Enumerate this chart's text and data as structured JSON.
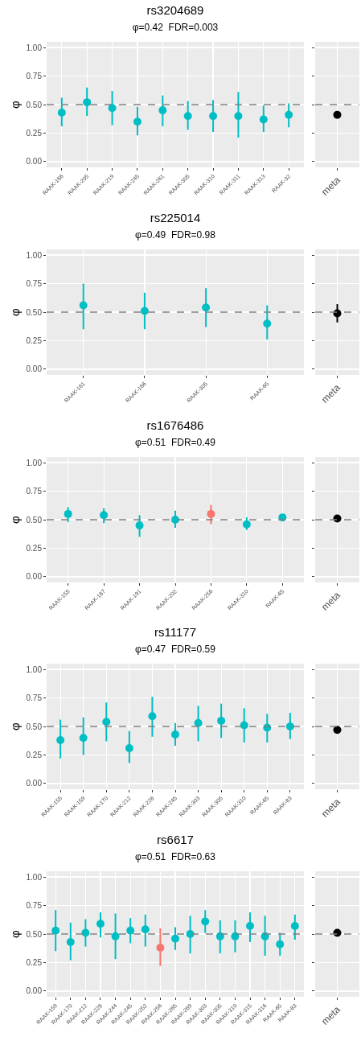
{
  "chart_data": [
    {
      "type": "scatter",
      "title": "rs3204689",
      "subtitle": "φ=0.42  FDR=0.003",
      "ylabel": "φ",
      "categories": [
        "RAAK-166",
        "RAAK-205",
        "RAAK-219",
        "RAAK-245",
        "RAAK-261",
        "RAAK-305",
        "RAAK-310",
        "RAAK-311",
        "RAAK-313",
        "RAAK-32"
      ],
      "values": [
        0.43,
        0.52,
        0.47,
        0.35,
        0.45,
        0.4,
        0.4,
        0.4,
        0.37,
        0.41
      ],
      "errors": [
        [
          0.31,
          0.56
        ],
        [
          0.4,
          0.65
        ],
        [
          0.32,
          0.62
        ],
        [
          0.23,
          0.48
        ],
        [
          0.31,
          0.58
        ],
        [
          0.28,
          0.53
        ],
        [
          0.26,
          0.54
        ],
        [
          0.21,
          0.61
        ],
        [
          0.26,
          0.49
        ],
        [
          0.3,
          0.51
        ]
      ],
      "colors": [
        "#00bfc4",
        "#00bfc4",
        "#00bfc4",
        "#00bfc4",
        "#00bfc4",
        "#00bfc4",
        "#00bfc4",
        "#00bfc4",
        "#00bfc4",
        "#00bfc4"
      ],
      "ylim": [
        -0.05,
        1.05
      ],
      "yticks": [
        {
          "value": 0,
          "label": "0.00"
        },
        {
          "value": 0.25,
          "label": "0.25"
        },
        {
          "value": 0.5,
          "label": "0.50"
        },
        {
          "value": 0.75,
          "label": "0.75"
        },
        {
          "value": 1,
          "label": "1.00"
        }
      ],
      "ref_lines": [
        {
          "axis": "y",
          "value": 0.5,
          "color": "#7f7f7f",
          "line_style": "dashed"
        }
      ],
      "grid": true,
      "marker": "circle"
    },
    {
      "type": "scatter",
      "categories": [
        "meta"
      ],
      "values": [
        0.41
      ],
      "errors": [
        [
          0.38,
          0.44
        ]
      ],
      "colors": [
        "#000000"
      ],
      "ylim": [
        -0.05,
        1.05
      ],
      "yticks": [
        {
          "value": 0,
          "label": null
        },
        {
          "value": 0.25,
          "label": null
        },
        {
          "value": 0.5,
          "label": null
        },
        {
          "value": 0.75,
          "label": null
        },
        {
          "value": 1,
          "label": null
        }
      ],
      "tick_labels": "x",
      "ref_lines": [
        {
          "axis": "y",
          "value": 0.5,
          "color": "#7f7f7f",
          "line_style": "dashed"
        }
      ],
      "grid": true,
      "marker": "circle"
    },
    {
      "type": "scatter",
      "title": "rs225014",
      "subtitle": "φ=0.49  FDR=0.98",
      "ylabel": "φ",
      "categories": [
        "RAAK-161",
        "RAAK-166",
        "RAAK-305",
        "RAAK-65"
      ],
      "values": [
        0.56,
        0.51,
        0.54,
        0.4
      ],
      "errors": [
        [
          0.35,
          0.75
        ],
        [
          0.35,
          0.67
        ],
        [
          0.37,
          0.71
        ],
        [
          0.26,
          0.56
        ]
      ],
      "colors": [
        "#00bfc4",
        "#00bfc4",
        "#00bfc4",
        "#00bfc4"
      ],
      "ylim": [
        -0.05,
        1.05
      ],
      "yticks": [
        {
          "value": 0,
          "label": "0.00"
        },
        {
          "value": 0.25,
          "label": "0.25"
        },
        {
          "value": 0.5,
          "label": "0.50"
        },
        {
          "value": 0.75,
          "label": "0.75"
        },
        {
          "value": 1,
          "label": "1.00"
        }
      ],
      "ref_lines": [
        {
          "axis": "y",
          "value": 0.5,
          "color": "#7f7f7f",
          "line_style": "dashed"
        }
      ],
      "grid": true,
      "marker": "circle"
    },
    {
      "type": "scatter",
      "categories": [
        "meta"
      ],
      "values": [
        0.49
      ],
      "errors": [
        [
          0.41,
          0.57
        ]
      ],
      "colors": [
        "#000000"
      ],
      "ylim": [
        -0.05,
        1.05
      ],
      "yticks": [
        {
          "value": 0,
          "label": null
        },
        {
          "value": 0.25,
          "label": null
        },
        {
          "value": 0.5,
          "label": null
        },
        {
          "value": 0.75,
          "label": null
        },
        {
          "value": 1,
          "label": null
        }
      ],
      "tick_labels": "x",
      "ref_lines": [
        {
          "axis": "y",
          "value": 0.5,
          "color": "#7f7f7f",
          "line_style": "dashed"
        }
      ],
      "grid": true,
      "marker": "circle"
    },
    {
      "type": "scatter",
      "title": "rs1676486",
      "subtitle": "φ=0.51  FDR=0.49",
      "ylabel": "φ",
      "categories": [
        "RAAK-155",
        "RAAK-187",
        "RAAK-191",
        "RAAK-202",
        "RAAK-256",
        "RAAK-310",
        "RAAK-65"
      ],
      "values": [
        0.55,
        0.54,
        0.45,
        0.5,
        0.55,
        0.46,
        0.52
      ],
      "errors": [
        [
          0.48,
          0.61
        ],
        [
          0.47,
          0.6
        ],
        [
          0.35,
          0.54
        ],
        [
          0.43,
          0.58
        ],
        [
          0.46,
          0.63
        ],
        [
          0.41,
          0.52
        ],
        [
          0.5,
          0.54
        ]
      ],
      "colors": [
        "#00bfc4",
        "#00bfc4",
        "#00bfc4",
        "#00bfc4",
        "#f8766d",
        "#00bfc4",
        "#00bfc4"
      ],
      "ylim": [
        -0.05,
        1.05
      ],
      "yticks": [
        {
          "value": 0,
          "label": "0.00"
        },
        {
          "value": 0.25,
          "label": "0.25"
        },
        {
          "value": 0.5,
          "label": "0.50"
        },
        {
          "value": 0.75,
          "label": "0.75"
        },
        {
          "value": 1,
          "label": "1.00"
        }
      ],
      "ref_lines": [
        {
          "axis": "y",
          "value": 0.5,
          "color": "#7f7f7f",
          "line_style": "dashed"
        }
      ],
      "grid": true,
      "marker": "circle"
    },
    {
      "type": "scatter",
      "categories": [
        "meta"
      ],
      "values": [
        0.51
      ],
      "errors": [
        [
          0.5,
          0.53
        ]
      ],
      "colors": [
        "#000000"
      ],
      "ylim": [
        -0.05,
        1.05
      ],
      "yticks": [
        {
          "value": 0,
          "label": null
        },
        {
          "value": 0.25,
          "label": null
        },
        {
          "value": 0.5,
          "label": null
        },
        {
          "value": 0.75,
          "label": null
        },
        {
          "value": 1,
          "label": null
        }
      ],
      "tick_labels": "x",
      "ref_lines": [
        {
          "axis": "y",
          "value": 0.5,
          "color": "#7f7f7f",
          "line_style": "dashed"
        }
      ],
      "grid": true,
      "marker": "circle"
    },
    {
      "type": "scatter",
      "title": "rs11177",
      "subtitle": "φ=0.47  FDR=0.59",
      "ylabel": "φ",
      "categories": [
        "RAAK-155",
        "RAAK-159",
        "RAAK-170",
        "RAAK-212",
        "RAAK-228",
        "RAAK-245",
        "RAAK-303",
        "RAAK-305",
        "RAAK-310",
        "RAAK-65",
        "RAAK-83"
      ],
      "values": [
        0.38,
        0.4,
        0.54,
        0.31,
        0.59,
        0.43,
        0.53,
        0.55,
        0.51,
        0.49,
        0.5
      ],
      "errors": [
        [
          0.22,
          0.56
        ],
        [
          0.25,
          0.58
        ],
        [
          0.37,
          0.71
        ],
        [
          0.18,
          0.46
        ],
        [
          0.41,
          0.76
        ],
        [
          0.33,
          0.53
        ],
        [
          0.37,
          0.68
        ],
        [
          0.4,
          0.7
        ],
        [
          0.36,
          0.66
        ],
        [
          0.36,
          0.61
        ],
        [
          0.39,
          0.62
        ]
      ],
      "colors": [
        "#00bfc4",
        "#00bfc4",
        "#00bfc4",
        "#00bfc4",
        "#00bfc4",
        "#00bfc4",
        "#00bfc4",
        "#00bfc4",
        "#00bfc4",
        "#00bfc4",
        "#00bfc4"
      ],
      "ylim": [
        -0.05,
        1.05
      ],
      "yticks": [
        {
          "value": 0,
          "label": "0.00"
        },
        {
          "value": 0.25,
          "label": "0.25"
        },
        {
          "value": 0.5,
          "label": "0.50"
        },
        {
          "value": 0.75,
          "label": "0.75"
        },
        {
          "value": 1,
          "label": "1.00"
        }
      ],
      "ref_lines": [
        {
          "axis": "y",
          "value": 0.5,
          "color": "#7f7f7f",
          "line_style": "dashed"
        }
      ],
      "grid": true,
      "marker": "circle"
    },
    {
      "type": "scatter",
      "categories": [
        "meta"
      ],
      "values": [
        0.47
      ],
      "errors": [
        [
          0.44,
          0.5
        ]
      ],
      "colors": [
        "#000000"
      ],
      "ylim": [
        -0.05,
        1.05
      ],
      "yticks": [
        {
          "value": 0,
          "label": null
        },
        {
          "value": 0.25,
          "label": null
        },
        {
          "value": 0.5,
          "label": null
        },
        {
          "value": 0.75,
          "label": null
        },
        {
          "value": 1,
          "label": null
        }
      ],
      "tick_labels": "x",
      "ref_lines": [
        {
          "axis": "y",
          "value": 0.5,
          "color": "#7f7f7f",
          "line_style": "dashed"
        }
      ],
      "grid": true,
      "marker": "circle"
    },
    {
      "type": "scatter",
      "title": "rs6617",
      "subtitle": "φ=0.51  FDR=0.63",
      "ylabel": "φ",
      "categories": [
        "RAAK-159",
        "RAAK-170",
        "RAAK-212",
        "RAAK-228",
        "RAAK-244",
        "RAAK-245",
        "RAAK-252",
        "RAAK-256",
        "RAAK-265",
        "RAAK-289",
        "RAAK-303",
        "RAAK-305",
        "RAAK-310",
        "RAAK-315",
        "RAAK-316",
        "RAAK-65",
        "RAAK-83"
      ],
      "values": [
        0.53,
        0.43,
        0.51,
        0.59,
        0.48,
        0.53,
        0.54,
        0.38,
        0.46,
        0.5,
        0.61,
        0.48,
        0.48,
        0.57,
        0.48,
        0.41,
        0.57
      ],
      "errors": [
        [
          0.35,
          0.71
        ],
        [
          0.27,
          0.6
        ],
        [
          0.39,
          0.63
        ],
        [
          0.47,
          0.69
        ],
        [
          0.28,
          0.68
        ],
        [
          0.42,
          0.64
        ],
        [
          0.39,
          0.67
        ],
        [
          0.22,
          0.55
        ],
        [
          0.36,
          0.56
        ],
        [
          0.33,
          0.66
        ],
        [
          0.51,
          0.71
        ],
        [
          0.33,
          0.62
        ],
        [
          0.34,
          0.62
        ],
        [
          0.43,
          0.69
        ],
        [
          0.31,
          0.66
        ],
        [
          0.31,
          0.51
        ],
        [
          0.45,
          0.67
        ]
      ],
      "colors": [
        "#00bfc4",
        "#00bfc4",
        "#00bfc4",
        "#00bfc4",
        "#00bfc4",
        "#00bfc4",
        "#00bfc4",
        "#f8766d",
        "#00bfc4",
        "#00bfc4",
        "#00bfc4",
        "#00bfc4",
        "#00bfc4",
        "#00bfc4",
        "#00bfc4",
        "#00bfc4",
        "#00bfc4"
      ],
      "ylim": [
        -0.05,
        1.05
      ],
      "yticks": [
        {
          "value": 0,
          "label": "0.00"
        },
        {
          "value": 0.25,
          "label": "0.25"
        },
        {
          "value": 0.5,
          "label": "0.50"
        },
        {
          "value": 0.75,
          "label": "0.75"
        },
        {
          "value": 1,
          "label": "1.00"
        }
      ],
      "ref_lines": [
        {
          "axis": "y",
          "value": 0.5,
          "color": "#7f7f7f",
          "line_style": "dashed"
        }
      ],
      "grid": true,
      "marker": "circle"
    },
    {
      "type": "scatter",
      "categories": [
        "meta"
      ],
      "values": [
        0.51
      ],
      "colors": [
        "#000000"
      ],
      "ylim": [
        -0.05,
        1.05
      ],
      "yticks": [
        {
          "value": 0,
          "label": null
        },
        {
          "value": 0.25,
          "label": null
        },
        {
          "value": 0.5,
          "label": null
        },
        {
          "value": 0.75,
          "label": null
        },
        {
          "value": 1,
          "label": null
        }
      ],
      "tick_labels": "x",
      "ref_lines": [
        {
          "axis": "y",
          "value": 0.5,
          "color": "#7f7f7f",
          "line_style": "dashed"
        }
      ],
      "grid": true,
      "marker": "circle"
    }
  ]
}
